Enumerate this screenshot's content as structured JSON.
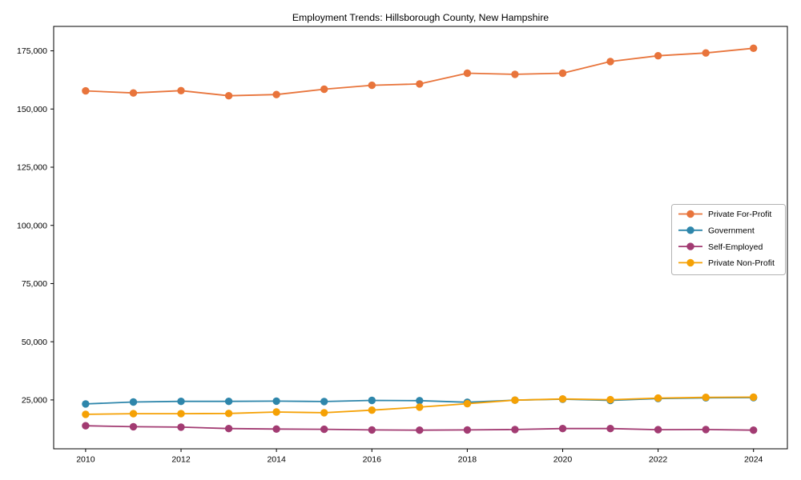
{
  "chart_data": {
    "type": "line",
    "title": "Employment Trends: Hillsborough County, New Hampshire",
    "xlabel": "",
    "ylabel": "",
    "grid": false,
    "legend_position": "center right",
    "marker": "circle",
    "x": [
      2010,
      2011,
      2012,
      2013,
      2014,
      2015,
      2016,
      2017,
      2018,
      2019,
      2020,
      2021,
      2022,
      2023,
      2024
    ],
    "xticks": [
      2010,
      2012,
      2014,
      2016,
      2018,
      2020,
      2022,
      2024
    ],
    "xtick_labels": [
      "2010",
      "2012",
      "2014",
      "2016",
      "2018",
      "2020",
      "2022",
      "2024"
    ],
    "yticks": [
      25000,
      50000,
      75000,
      100000,
      125000,
      150000,
      175000
    ],
    "ytick_labels": [
      "25,000",
      "50,000",
      "75,000",
      "100,000",
      "125,000",
      "150,000",
      "175,000"
    ],
    "xlim": [
      2009.33,
      2024.71
    ],
    "ylim": [
      4000,
      185500
    ],
    "series": [
      {
        "name": "Private For-Profit",
        "color": "#E8743B",
        "values": [
          157800,
          156900,
          157900,
          155700,
          156200,
          158500,
          160200,
          160800,
          165400,
          164900,
          165400,
          170400,
          172900,
          174100,
          176100
        ]
      },
      {
        "name": "Government",
        "color": "#2E86AB",
        "values": [
          23300,
          24100,
          24400,
          24400,
          24500,
          24300,
          24800,
          24700,
          24000,
          24900,
          25300,
          24800,
          25600,
          25900,
          26000
        ]
      },
      {
        "name": "Self-Employed",
        "color": "#A23B72",
        "values": [
          13900,
          13500,
          13300,
          12700,
          12500,
          12400,
          12100,
          12000,
          12100,
          12300,
          12700,
          12700,
          12200,
          12300,
          12000
        ]
      },
      {
        "name": "Private Non-Profit",
        "color": "#F5A105",
        "values": [
          18800,
          19100,
          19100,
          19200,
          19800,
          19500,
          20600,
          21900,
          23400,
          24900,
          25400,
          25100,
          25800,
          26100,
          26200
        ]
      }
    ]
  }
}
